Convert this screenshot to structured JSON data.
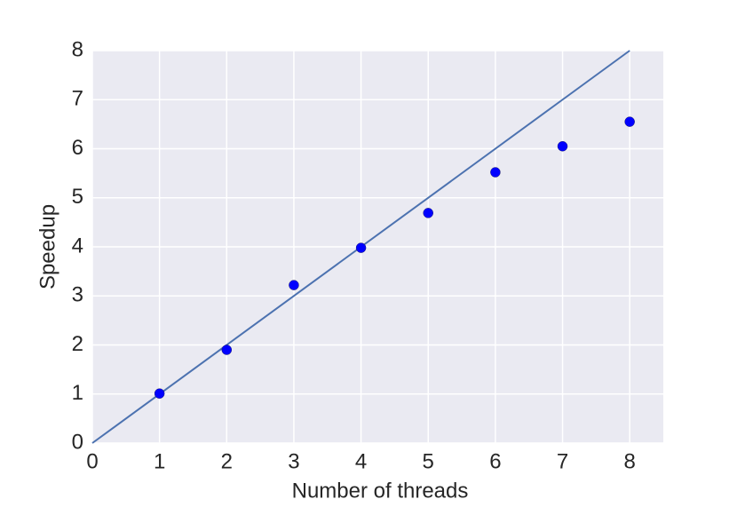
{
  "chart_data": {
    "type": "scatter",
    "xlabel": "Number of threads",
    "ylabel": "Speedup",
    "xlim": [
      0,
      8.5
    ],
    "ylim": [
      0,
      8
    ],
    "xticks": [
      0,
      1,
      2,
      3,
      4,
      5,
      6,
      7,
      8
    ],
    "yticks": [
      0,
      1,
      2,
      3,
      4,
      5,
      6,
      7,
      8
    ],
    "grid": true,
    "background": "#eaeaf2",
    "series": [
      {
        "type": "line",
        "color": "#4c72b0",
        "x": [
          0,
          8
        ],
        "values": [
          0,
          8
        ]
      },
      {
        "type": "scatter",
        "color": "#0000ff",
        "x": [
          1,
          2,
          3,
          4,
          5,
          6,
          7,
          8
        ],
        "values": [
          1.01,
          1.9,
          3.22,
          3.98,
          4.69,
          5.52,
          6.05,
          6.55
        ]
      }
    ]
  }
}
